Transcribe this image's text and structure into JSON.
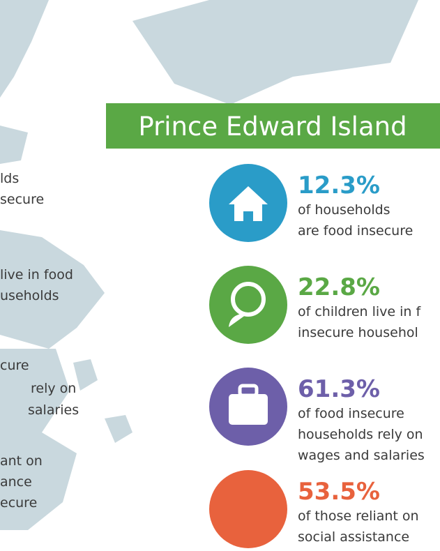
{
  "left_fragments": [
    "lds",
    "secure",
    "live in food",
    "useholds",
    "cure",
    "rely on",
    "salaries",
    "ant on",
    "ance",
    "ecure"
  ],
  "title": "Prince Edward Island",
  "stats": [
    {
      "value": "12.3%",
      "lines": [
        "of households",
        "are food insecure"
      ]
    },
    {
      "value": "22.8%",
      "lines": [
        "of children live in f",
        "insecure househol"
      ]
    },
    {
      "value": "61.3%",
      "lines": [
        "of food insecure",
        "households rely on",
        "wages and salaries"
      ]
    },
    {
      "value": "53.5%",
      "lines": [
        "of those reliant on",
        "social assistance"
      ]
    }
  ]
}
